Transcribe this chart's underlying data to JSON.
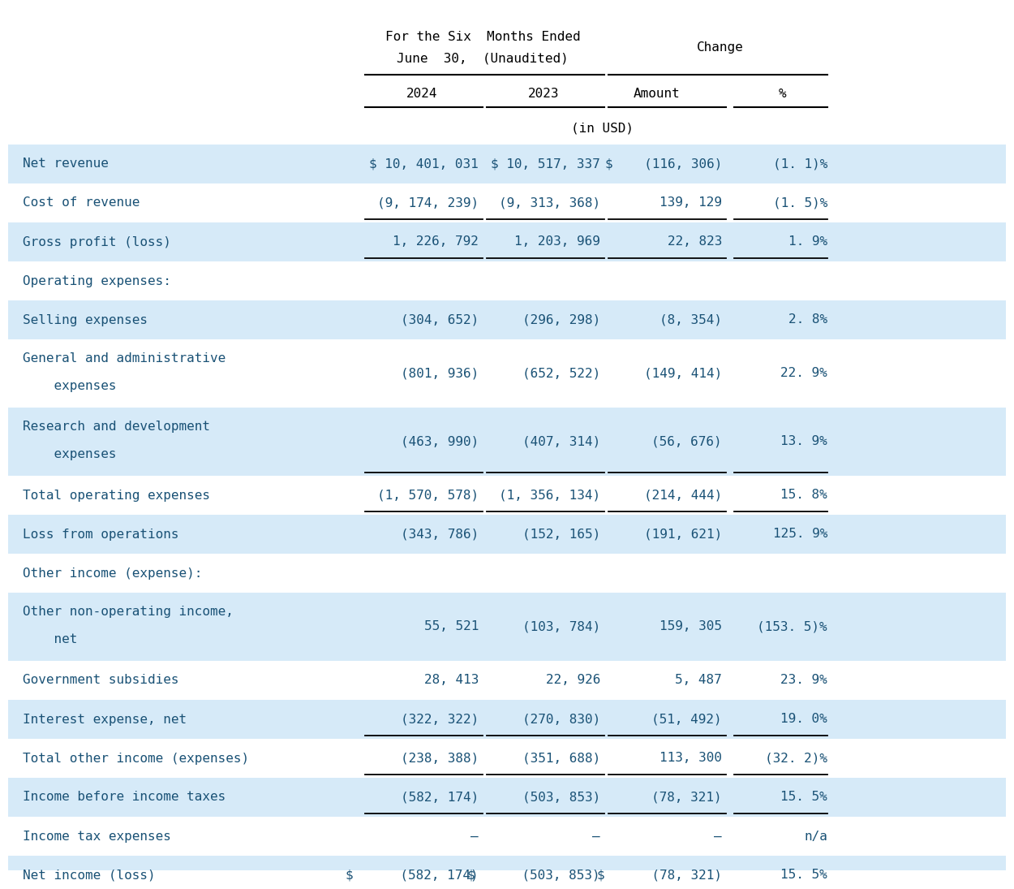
{
  "bg_color": "#ffffff",
  "cell_bg_blue": "#d6eaf8",
  "cell_bg_white": "#ffffff",
  "text_color": "#1a5276",
  "font_size": 11.5,
  "rows": [
    {
      "label": "Net revenue",
      "col1": "$ 10, 401, 031",
      "col2": "$ 10, 517, 337",
      "col3": "$    (116, 306)",
      "col4": "(1. 1)%",
      "bg": "blue",
      "bold": false,
      "line_below": false,
      "double_line": false
    },
    {
      "label": "Cost of revenue",
      "col1": "(9, 174, 239)",
      "col2": "(9, 313, 368)",
      "col3": "139, 129",
      "col4": "(1. 5)%",
      "bg": "white",
      "bold": false,
      "line_below": true,
      "double_line": false
    },
    {
      "label": "Gross profit (loss)",
      "col1": "1, 226, 792",
      "col2": "1, 203, 969",
      "col3": "22, 823",
      "col4": "1. 9%",
      "bg": "blue",
      "bold": false,
      "line_below": true,
      "double_line": false
    },
    {
      "label": "Operating expenses:",
      "col1": "",
      "col2": "",
      "col3": "",
      "col4": "",
      "bg": "white",
      "bold": false,
      "line_below": false,
      "double_line": false
    },
    {
      "label": "Selling expenses",
      "col1": "(304, 652)",
      "col2": "(296, 298)",
      "col3": "(8, 354)",
      "col4": "2. 8%",
      "bg": "blue",
      "bold": false,
      "line_below": false,
      "double_line": false
    },
    {
      "label": "General and administrative\n    expenses",
      "col1": "(801, 936)",
      "col2": "(652, 522)",
      "col3": "(149, 414)",
      "col4": "22. 9%",
      "bg": "white",
      "bold": false,
      "line_below": false,
      "double_line": false
    },
    {
      "label": "Research and development\n    expenses",
      "col1": "(463, 990)",
      "col2": "(407, 314)",
      "col3": "(56, 676)",
      "col4": "13. 9%",
      "bg": "blue",
      "bold": false,
      "line_below": true,
      "double_line": false
    },
    {
      "label": "Total operating expenses",
      "col1": "(1, 570, 578)",
      "col2": "(1, 356, 134)",
      "col3": "(214, 444)",
      "col4": "15. 8%",
      "bg": "white",
      "bold": false,
      "line_below": true,
      "double_line": false
    },
    {
      "label": "Loss from operations",
      "col1": "(343, 786)",
      "col2": "(152, 165)",
      "col3": "(191, 621)",
      "col4": "125. 9%",
      "bg": "blue",
      "bold": false,
      "line_below": false,
      "double_line": false
    },
    {
      "label": "Other income (expense):",
      "col1": "",
      "col2": "",
      "col3": "",
      "col4": "",
      "bg": "white",
      "bold": false,
      "line_below": false,
      "double_line": false
    },
    {
      "label": "Other non-operating income,\n    net",
      "col1": "55, 521",
      "col2": "(103, 784)",
      "col3": "159, 305",
      "col4": "(153. 5)%",
      "bg": "blue",
      "bold": false,
      "line_below": false,
      "double_line": false
    },
    {
      "label": "Government subsidies",
      "col1": "28, 413",
      "col2": "22, 926",
      "col3": "5, 487",
      "col4": "23. 9%",
      "bg": "white",
      "bold": false,
      "line_below": false,
      "double_line": false
    },
    {
      "label": "Interest expense, net",
      "col1": "(322, 322)",
      "col2": "(270, 830)",
      "col3": "(51, 492)",
      "col4": "19. 0%",
      "bg": "blue",
      "bold": false,
      "line_below": true,
      "double_line": false
    },
    {
      "label": "Total other income (expenses)",
      "col1": "(238, 388)",
      "col2": "(351, 688)",
      "col3": "113, 300",
      "col4": "(32. 2)%",
      "bg": "white",
      "bold": false,
      "line_below": true,
      "double_line": false
    },
    {
      "label": "Income before income taxes",
      "col1": "(582, 174)",
      "col2": "(503, 853)",
      "col3": "(78, 321)",
      "col4": "15. 5%",
      "bg": "blue",
      "bold": false,
      "line_below": true,
      "double_line": false
    },
    {
      "label": "Income tax expenses",
      "col1": "—",
      "col2": "—",
      "col3": "—",
      "col4": "n/a",
      "bg": "white",
      "bold": false,
      "line_below": false,
      "double_line": false
    },
    {
      "label": "Net income (loss)",
      "col1": "$      (582, 174)",
      "col2": "$      (503, 853)",
      "col3": "$      (78, 321)",
      "col4": "15. 5%",
      "bg": "blue",
      "bold": false,
      "line_below": false,
      "double_line": true
    }
  ]
}
